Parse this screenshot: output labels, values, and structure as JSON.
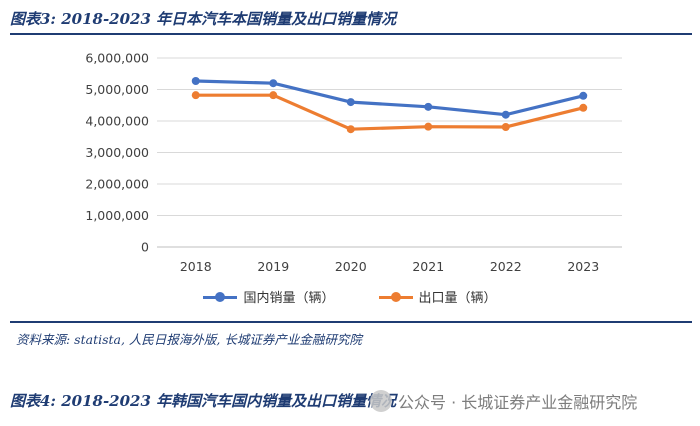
{
  "figure": {
    "title": "图表3:  2018-2023 年日本汽车本国销量及出口销量情况",
    "source": "资料来源: statista, 人民日报海外版, 长城证券产业金融研究院",
    "next_title": "图表4:  2018-2023 年韩国汽车国内销量及出口销量情况",
    "watermark": "公众号 · 长城证券产业金融研究院"
  },
  "colors": {
    "accent": "#1f3c73",
    "domestic": "#4472c4",
    "export": "#ed7d31",
    "grid": "#d9d9d9"
  },
  "chart_data": {
    "type": "line",
    "title": "",
    "xlabel": "",
    "ylabel": "",
    "categories": [
      "2018",
      "2019",
      "2020",
      "2021",
      "2022",
      "2023"
    ],
    "ylim": [
      0,
      6000000
    ],
    "yticks": [
      0,
      1000000,
      2000000,
      3000000,
      4000000,
      5000000,
      6000000
    ],
    "ytick_labels": [
      "0",
      "1,000,000",
      "2,000,000",
      "3,000,000",
      "4,000,000",
      "5,000,000",
      "6,000,000"
    ],
    "grid": true,
    "legend_position": "bottom",
    "series": [
      {
        "name": "国内销量（辆）",
        "color": "#4472c4",
        "values": [
          5270000,
          5200000,
          4600000,
          4450000,
          4200000,
          4800000
        ]
      },
      {
        "name": "出口量（辆）",
        "color": "#ed7d31",
        "values": [
          4820000,
          4820000,
          3740000,
          3820000,
          3810000,
          4420000
        ]
      }
    ]
  }
}
